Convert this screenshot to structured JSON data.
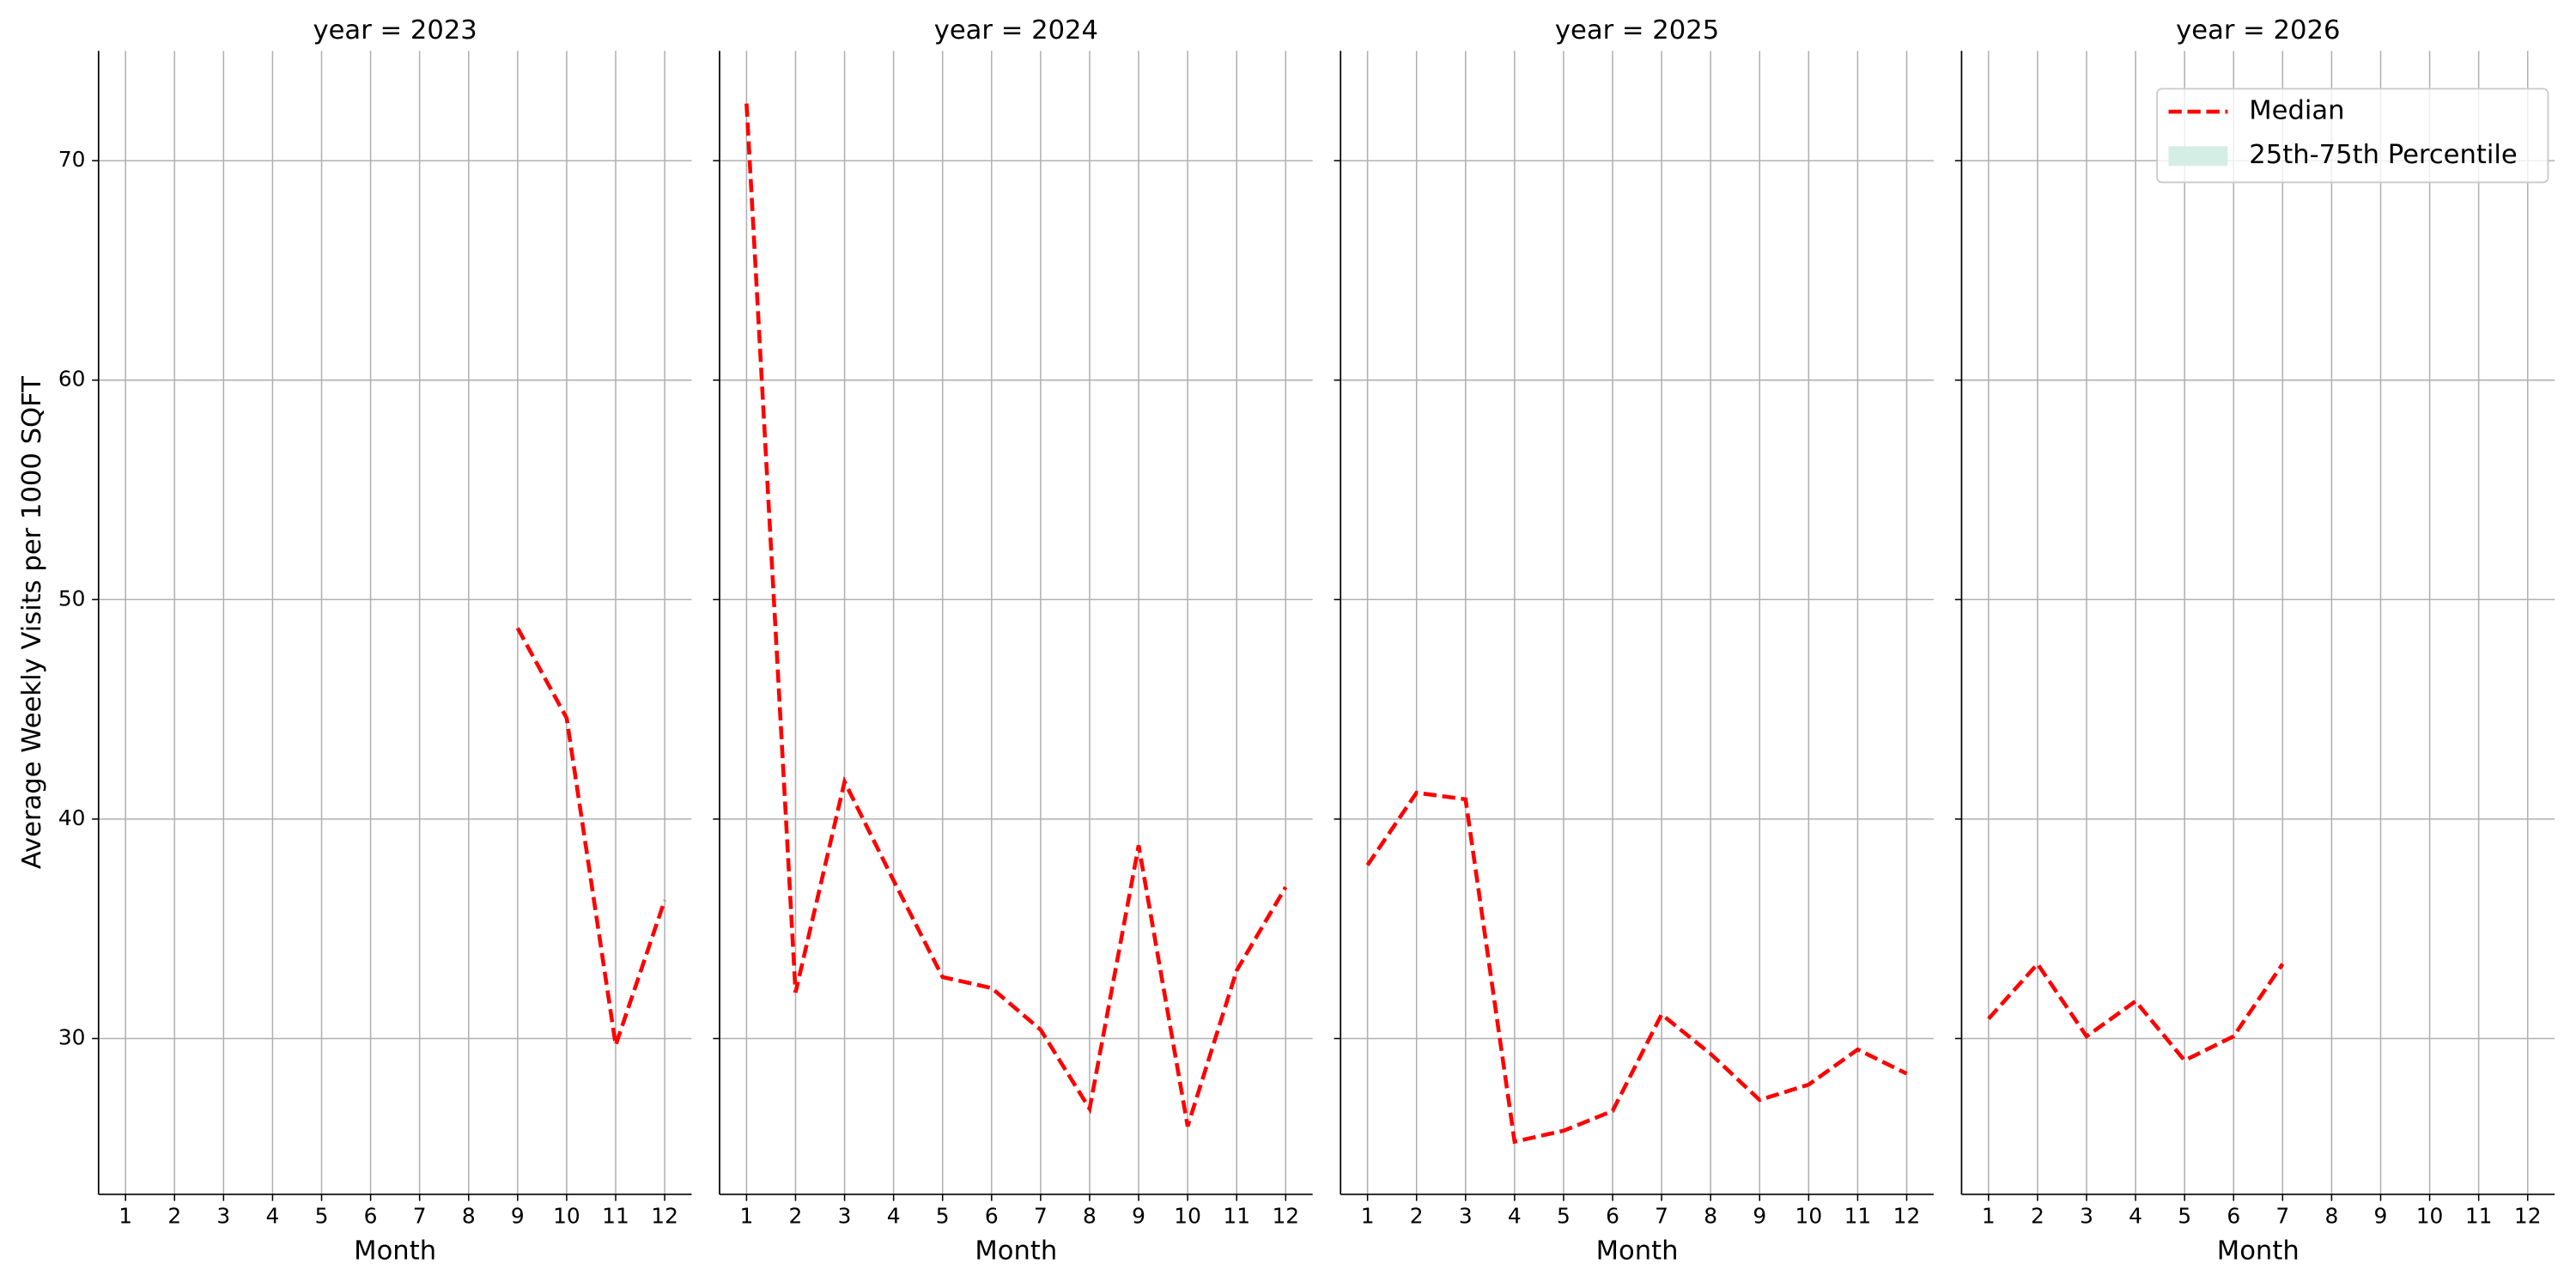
{
  "chart_data": [
    {
      "type": "line",
      "title": "year = 2023",
      "xlabel": "Month",
      "ylabel": "Average Weekly Visits per 1000 SQFT",
      "x": [
        1,
        2,
        3,
        4,
        5,
        6,
        7,
        8,
        9,
        10,
        11,
        12
      ],
      "xlim": [
        0.45,
        12.55
      ],
      "xticks": [
        1,
        2,
        3,
        4,
        5,
        6,
        7,
        8,
        9,
        10,
        11,
        12
      ],
      "ylim": [
        22.9,
        75.0
      ],
      "yticks": [
        30,
        40,
        50,
        60,
        70
      ],
      "ytick_labels": true,
      "grid": true,
      "series": [
        {
          "name": "Median",
          "color": "#ff0000",
          "style": "dashed",
          "values": [
            null,
            null,
            null,
            null,
            null,
            null,
            null,
            null,
            48.7,
            44.6,
            29.7,
            36.3
          ]
        }
      ]
    },
    {
      "type": "line",
      "title": "year = 2024",
      "xlabel": "Month",
      "x": [
        1,
        2,
        3,
        4,
        5,
        6,
        7,
        8,
        9,
        10,
        11,
        12
      ],
      "xlim": [
        0.45,
        12.55
      ],
      "xticks": [
        1,
        2,
        3,
        4,
        5,
        6,
        7,
        8,
        9,
        10,
        11,
        12
      ],
      "ylim": [
        22.9,
        75.0
      ],
      "yticks": [
        30,
        40,
        50,
        60,
        70
      ],
      "ytick_labels": false,
      "grid": true,
      "series": [
        {
          "name": "Median",
          "color": "#ff0000",
          "style": "dashed",
          "values": [
            72.6,
            32.1,
            41.7,
            37.2,
            32.8,
            32.3,
            30.4,
            26.8,
            38.8,
            26.0,
            33.1,
            36.9
          ]
        }
      ]
    },
    {
      "type": "line",
      "title": "year = 2025",
      "xlabel": "Month",
      "x": [
        1,
        2,
        3,
        4,
        5,
        6,
        7,
        8,
        9,
        10,
        11,
        12
      ],
      "xlim": [
        0.45,
        12.55
      ],
      "xticks": [
        1,
        2,
        3,
        4,
        5,
        6,
        7,
        8,
        9,
        10,
        11,
        12
      ],
      "ylim": [
        22.9,
        75.0
      ],
      "yticks": [
        30,
        40,
        50,
        60,
        70
      ],
      "ytick_labels": false,
      "grid": true,
      "series": [
        {
          "name": "Median",
          "color": "#ff0000",
          "style": "dashed",
          "values": [
            37.9,
            41.2,
            40.9,
            25.3,
            25.8,
            26.7,
            31.1,
            29.3,
            27.2,
            27.9,
            29.5,
            28.4
          ]
        }
      ]
    },
    {
      "type": "line",
      "title": "year = 2026",
      "xlabel": "Month",
      "x": [
        1,
        2,
        3,
        4,
        5,
        6,
        7,
        8,
        9,
        10,
        11,
        12
      ],
      "xlim": [
        0.45,
        12.55
      ],
      "xticks": [
        1,
        2,
        3,
        4,
        5,
        6,
        7,
        8,
        9,
        10,
        11,
        12
      ],
      "ylim": [
        22.9,
        75.0
      ],
      "yticks": [
        30,
        40,
        50,
        60,
        70
      ],
      "ytick_labels": false,
      "grid": true,
      "legend": "upper right",
      "series": [
        {
          "name": "Median",
          "color": "#ff0000",
          "style": "dashed",
          "values": [
            30.9,
            33.4,
            30.1,
            31.7,
            29.0,
            30.1,
            33.4,
            null,
            null,
            null,
            null,
            null
          ]
        },
        {
          "name": "25th-75th Percentile",
          "color": "#d4eee5",
          "style": "band",
          "lower": [
            null,
            null,
            null,
            null,
            null,
            null,
            null,
            null,
            null,
            null,
            null,
            null
          ],
          "upper": [
            null,
            null,
            null,
            null,
            null,
            null,
            null,
            null,
            null,
            null,
            null,
            null
          ]
        }
      ]
    }
  ]
}
